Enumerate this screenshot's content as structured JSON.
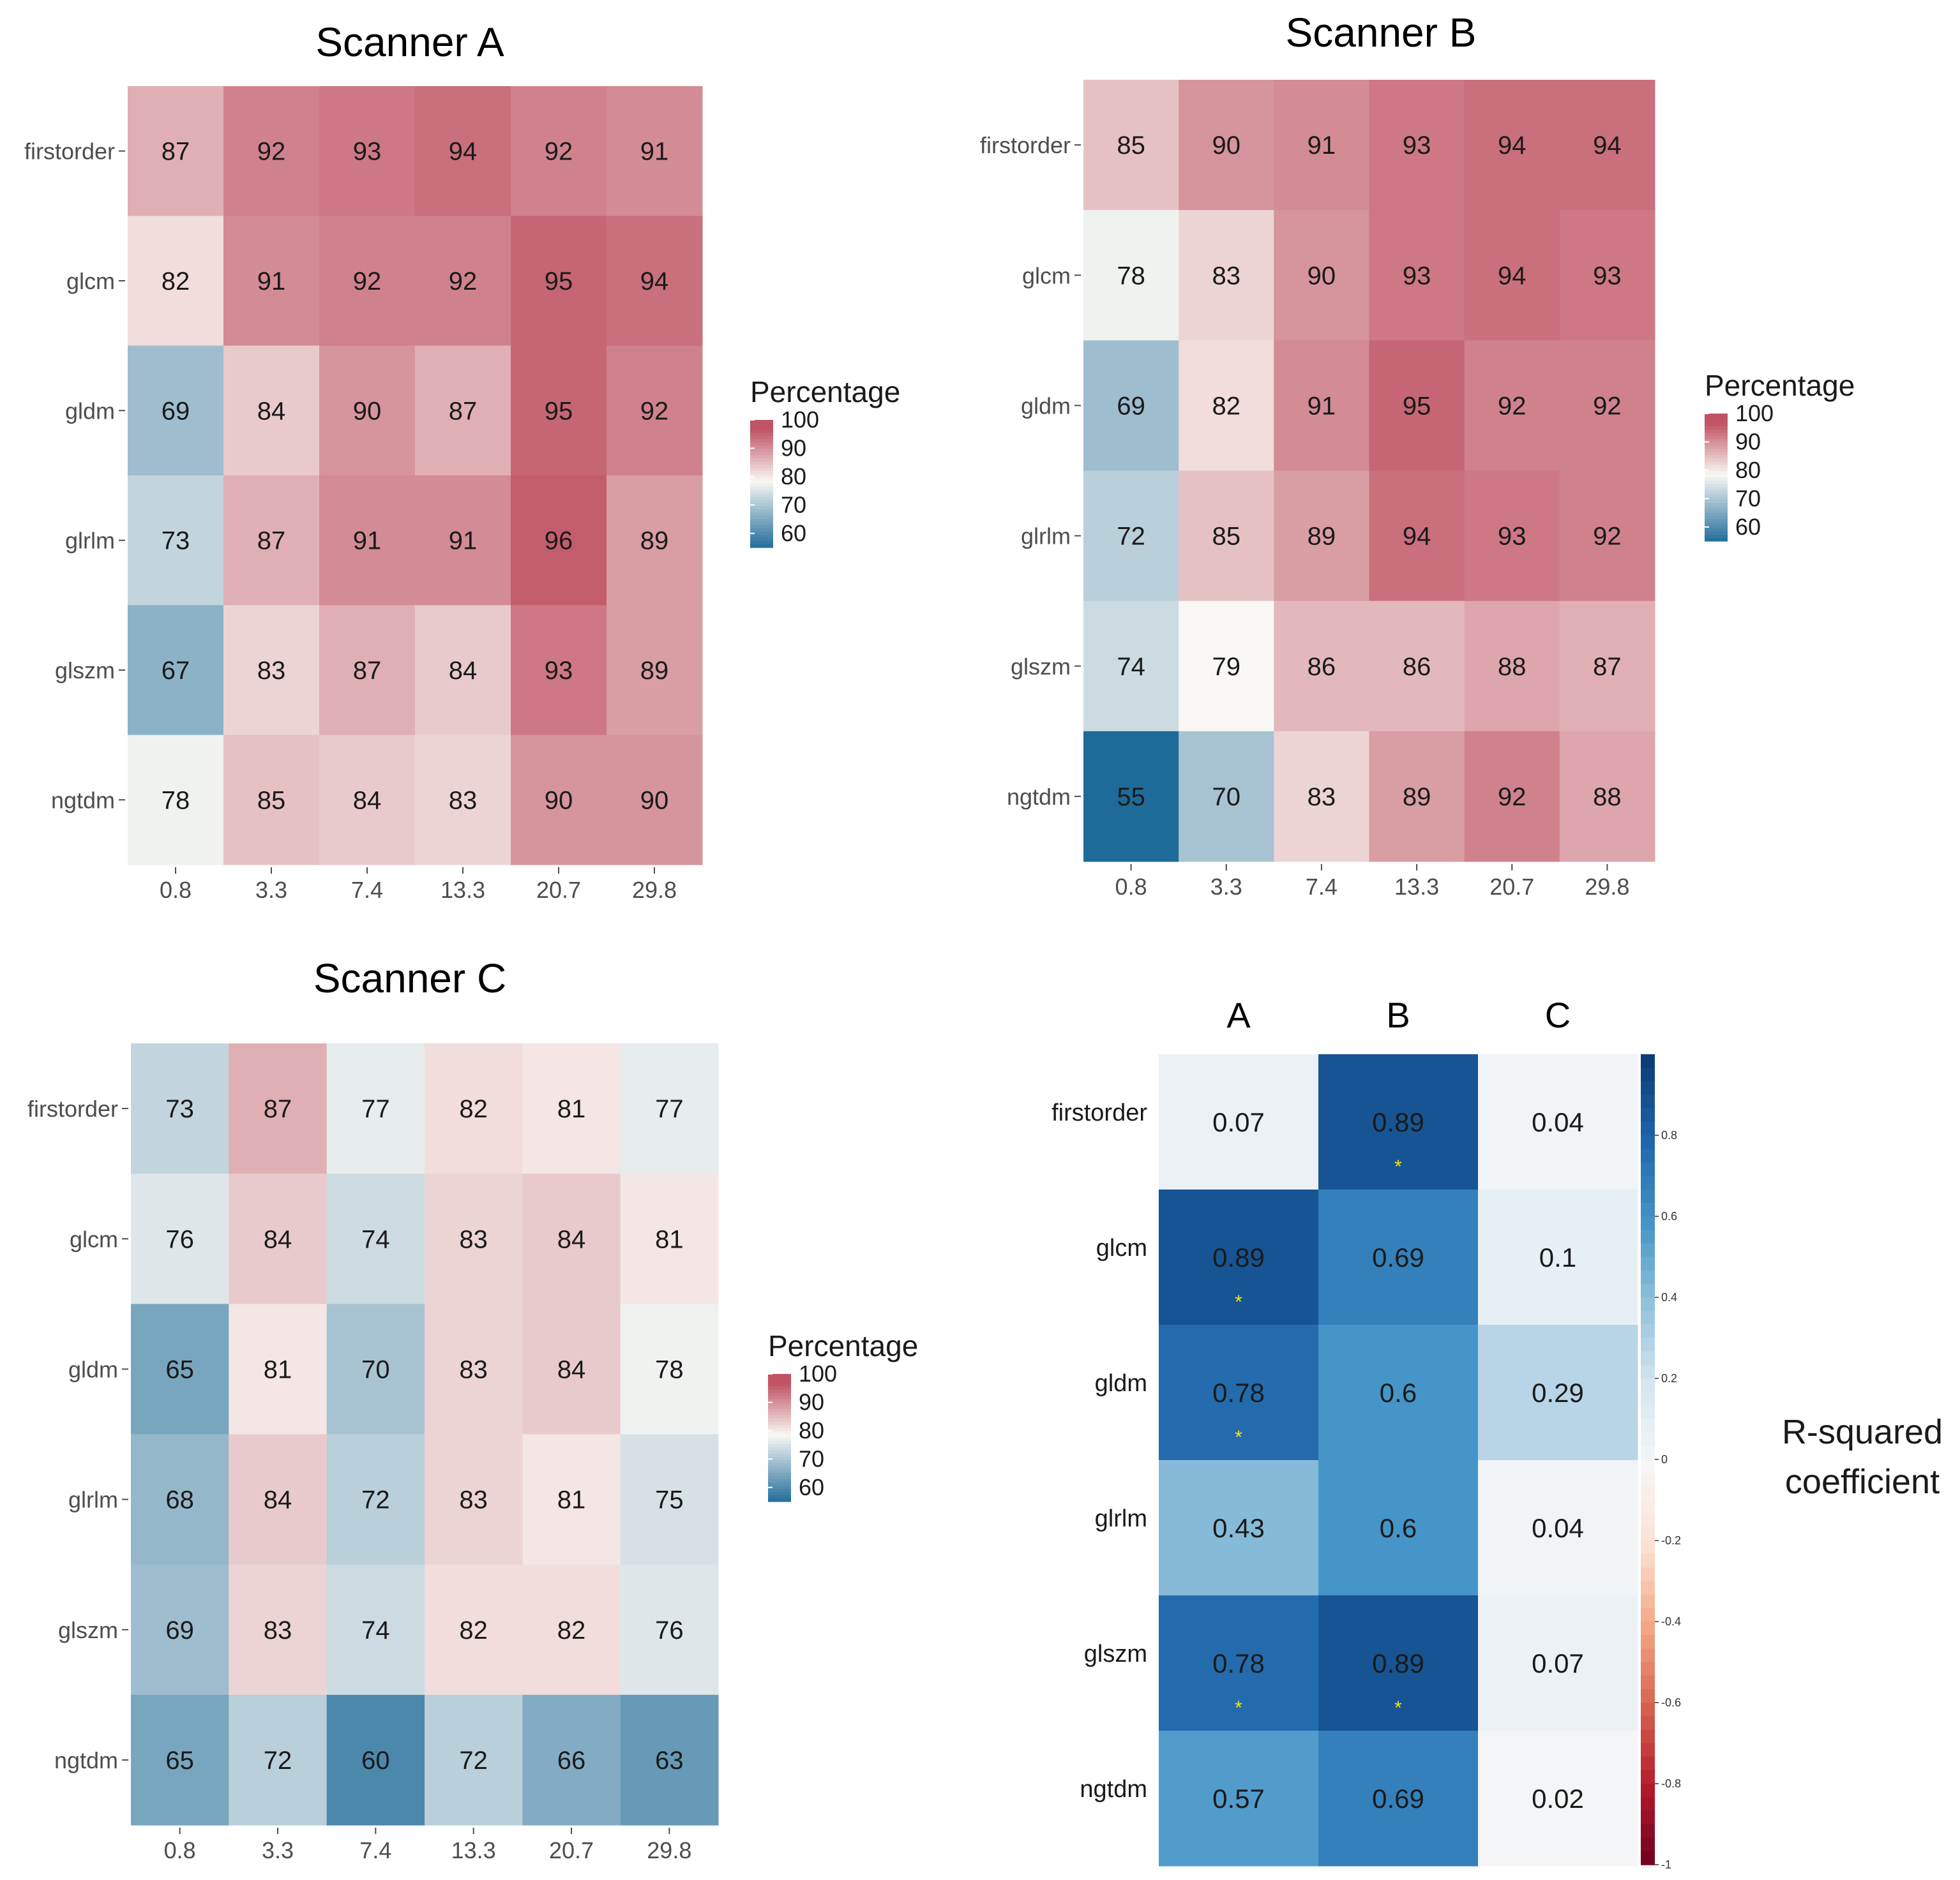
{
  "chart_data": [
    {
      "type": "heatmap",
      "title": "Scanner A",
      "rows": [
        "firstorder",
        "glcm",
        "gldm",
        "glrlm",
        "glszm",
        "ngtdm"
      ],
      "columns": [
        "0.8",
        "3.3",
        "7.4",
        "13.3",
        "20.7",
        "29.8"
      ],
      "values": [
        [
          87,
          92,
          93,
          94,
          92,
          91
        ],
        [
          82,
          91,
          92,
          92,
          95,
          94
        ],
        [
          69,
          84,
          90,
          87,
          95,
          92
        ],
        [
          73,
          87,
          91,
          91,
          96,
          89
        ],
        [
          67,
          83,
          87,
          84,
          93,
          89
        ],
        [
          78,
          85,
          84,
          83,
          90,
          90
        ]
      ],
      "legend": {
        "title": "Percentage",
        "ticks": [
          "100",
          "90",
          "80",
          "70",
          "60"
        ],
        "range": [
          55,
          100
        ]
      }
    },
    {
      "type": "heatmap",
      "title": "Scanner B",
      "rows": [
        "firstorder",
        "glcm",
        "gldm",
        "glrlm",
        "glszm",
        "ngtdm"
      ],
      "columns": [
        "0.8",
        "3.3",
        "7.4",
        "13.3",
        "20.7",
        "29.8"
      ],
      "values": [
        [
          85,
          90,
          91,
          93,
          94,
          94
        ],
        [
          78,
          83,
          90,
          93,
          94,
          93
        ],
        [
          69,
          82,
          91,
          95,
          92,
          92
        ],
        [
          72,
          85,
          89,
          94,
          93,
          92
        ],
        [
          74,
          79,
          86,
          86,
          88,
          87
        ],
        [
          55,
          70,
          83,
          89,
          92,
          88
        ]
      ],
      "legend": {
        "title": "Percentage",
        "ticks": [
          "100",
          "90",
          "80",
          "70",
          "60"
        ],
        "range": [
          55,
          100
        ]
      }
    },
    {
      "type": "heatmap",
      "title": "Scanner C",
      "rows": [
        "firstorder",
        "glcm",
        "gldm",
        "glrlm",
        "glszm",
        "ngtdm"
      ],
      "columns": [
        "0.8",
        "3.3",
        "7.4",
        "13.3",
        "20.7",
        "29.8"
      ],
      "values": [
        [
          73,
          87,
          77,
          82,
          81,
          77
        ],
        [
          76,
          84,
          74,
          83,
          84,
          81
        ],
        [
          65,
          81,
          70,
          83,
          84,
          78
        ],
        [
          68,
          84,
          72,
          83,
          81,
          75
        ],
        [
          69,
          83,
          74,
          82,
          82,
          76
        ],
        [
          65,
          72,
          60,
          72,
          66,
          63
        ]
      ],
      "legend": {
        "title": "Percentage",
        "ticks": [
          "100",
          "90",
          "80",
          "70",
          "60"
        ],
        "range": [
          55,
          100
        ]
      }
    },
    {
      "type": "heatmap",
      "title": "",
      "rows": [
        "firstorder",
        "glcm",
        "gldm",
        "glrlm",
        "glszm",
        "ngtdm"
      ],
      "columns": [
        "A",
        "B",
        "C"
      ],
      "values": [
        [
          "0.07",
          "0.89",
          "0.04"
        ],
        [
          "0.89",
          "0.69",
          "0.1"
        ],
        [
          "0.78",
          "0.6",
          "0.29"
        ],
        [
          "0.43",
          "0.6",
          "0.04"
        ],
        [
          "0.78",
          "0.89",
          "0.07"
        ],
        [
          "0.57",
          "0.69",
          "0.02"
        ]
      ],
      "significant": [
        [
          false,
          true,
          false
        ],
        [
          true,
          false,
          false
        ],
        [
          true,
          false,
          false
        ],
        [
          false,
          false,
          false
        ],
        [
          true,
          true,
          false
        ],
        [
          false,
          false,
          false
        ]
      ],
      "star_symbol": "*",
      "colorbar": {
        "ticks": [
          "0.8",
          "0.6",
          "0.4",
          "0.2",
          "0",
          "-0.2",
          "-0.4",
          "-0.6",
          "-0.8",
          "-1"
        ],
        "range": [
          -1,
          1
        ]
      },
      "caption_lines": [
        "R-squared",
        "coefficient"
      ]
    }
  ],
  "colors": {
    "high": "#b2182b",
    "mid": "#f7f7f7",
    "low": "#2166ac",
    "legend_low": "#1f6a9b",
    "legend_high": "#b43b4c"
  }
}
